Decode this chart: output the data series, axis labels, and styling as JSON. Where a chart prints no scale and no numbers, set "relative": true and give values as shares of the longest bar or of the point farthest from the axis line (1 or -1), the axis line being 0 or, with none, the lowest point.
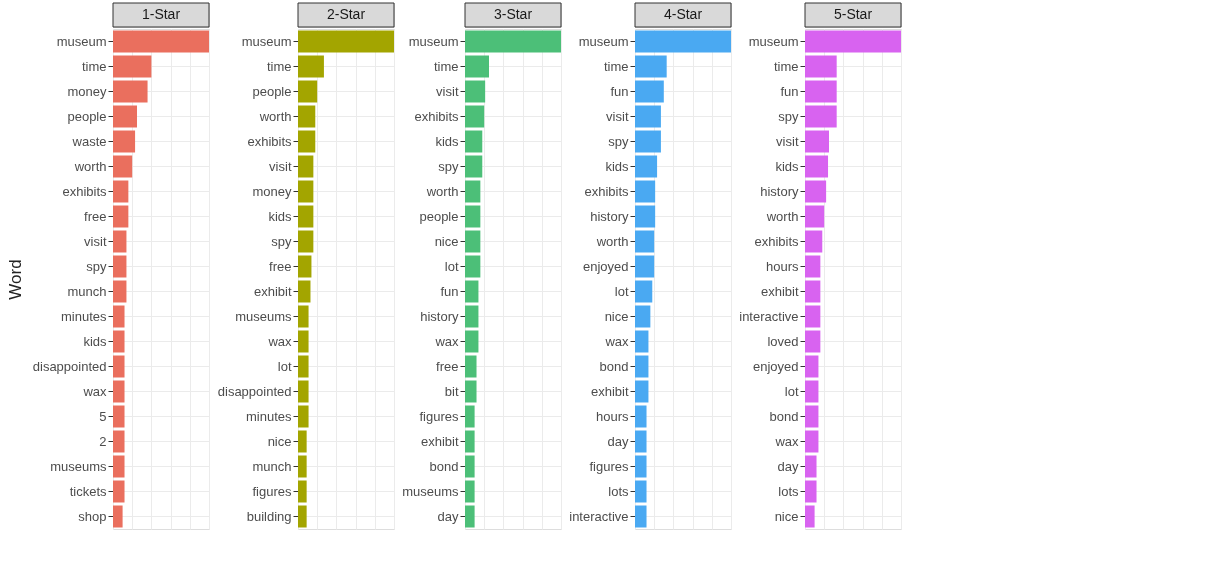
{
  "chart_data": [
    {
      "type": "bar",
      "orientation": "horizontal",
      "relative": true,
      "grid": true,
      "title": "1-Star",
      "ylabel": "Word",
      "color": "#ea6f5e",
      "categories": [
        "museum",
        "time",
        "money",
        "people",
        "waste",
        "worth",
        "exhibits",
        "free",
        "visit",
        "spy",
        "munch",
        "minutes",
        "kids",
        "disappointed",
        "wax",
        "5",
        "2",
        "museums",
        "tickets",
        "shop"
      ],
      "values": [
        1,
        0.4,
        0.36,
        0.25,
        0.23,
        0.2,
        0.16,
        0.16,
        0.14,
        0.14,
        0.14,
        0.12,
        0.12,
        0.12,
        0.12,
        0.12,
        0.12,
        0.12,
        0.12,
        0.1
      ]
    },
    {
      "type": "bar",
      "orientation": "horizontal",
      "relative": true,
      "grid": true,
      "title": "2-Star",
      "color": "#a3a500",
      "categories": [
        "museum",
        "time",
        "people",
        "worth",
        "exhibits",
        "visit",
        "money",
        "kids",
        "spy",
        "free",
        "exhibit",
        "museums",
        "wax",
        "lot",
        "disappointed",
        "minutes",
        "nice",
        "munch",
        "figures",
        "building"
      ],
      "values": [
        1,
        0.27,
        0.2,
        0.18,
        0.18,
        0.16,
        0.16,
        0.16,
        0.16,
        0.14,
        0.13,
        0.11,
        0.11,
        0.11,
        0.11,
        0.11,
        0.09,
        0.09,
        0.09,
        0.09
      ]
    },
    {
      "type": "bar",
      "orientation": "horizontal",
      "relative": true,
      "grid": true,
      "title": "3-Star",
      "color": "#4cbf78",
      "categories": [
        "museum",
        "time",
        "visit",
        "exhibits",
        "kids",
        "spy",
        "worth",
        "people",
        "nice",
        "lot",
        "fun",
        "history",
        "wax",
        "free",
        "bit",
        "figures",
        "exhibit",
        "bond",
        "museums",
        "day"
      ],
      "values": [
        1,
        0.25,
        0.21,
        0.2,
        0.18,
        0.18,
        0.16,
        0.16,
        0.16,
        0.16,
        0.14,
        0.14,
        0.14,
        0.12,
        0.12,
        0.1,
        0.1,
        0.1,
        0.1,
        0.1
      ]
    },
    {
      "type": "bar",
      "orientation": "horizontal",
      "relative": true,
      "grid": true,
      "title": "4-Star",
      "color": "#4aa9f2",
      "categories": [
        "museum",
        "time",
        "fun",
        "visit",
        "spy",
        "kids",
        "exhibits",
        "history",
        "worth",
        "enjoyed",
        "lot",
        "nice",
        "wax",
        "bond",
        "exhibit",
        "hours",
        "day",
        "figures",
        "lots",
        "interactive"
      ],
      "values": [
        1,
        0.33,
        0.3,
        0.27,
        0.27,
        0.23,
        0.21,
        0.21,
        0.2,
        0.2,
        0.18,
        0.16,
        0.14,
        0.14,
        0.14,
        0.12,
        0.12,
        0.12,
        0.12,
        0.12
      ]
    },
    {
      "type": "bar",
      "orientation": "horizontal",
      "relative": true,
      "grid": true,
      "title": "5-Star",
      "color": "#d863f0",
      "categories": [
        "museum",
        "time",
        "fun",
        "spy",
        "visit",
        "kids",
        "history",
        "worth",
        "exhibits",
        "hours",
        "exhibit",
        "interactive",
        "loved",
        "enjoyed",
        "lot",
        "bond",
        "wax",
        "day",
        "lots",
        "nice"
      ],
      "values": [
        1,
        0.33,
        0.33,
        0.33,
        0.25,
        0.24,
        0.22,
        0.2,
        0.18,
        0.16,
        0.16,
        0.16,
        0.16,
        0.14,
        0.14,
        0.14,
        0.14,
        0.12,
        0.12,
        0.1
      ]
    }
  ]
}
